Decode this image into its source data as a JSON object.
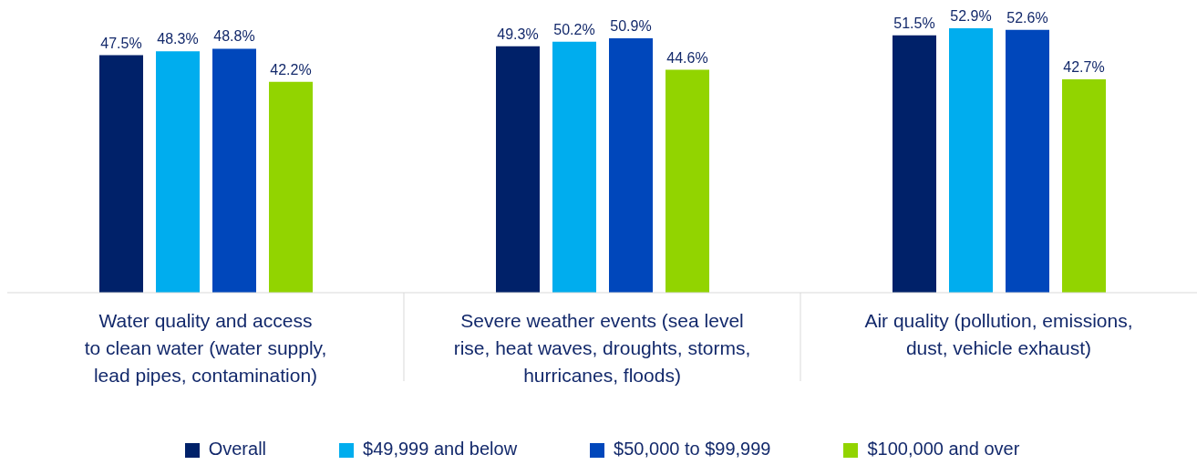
{
  "chart_data": {
    "type": "bar",
    "categories": [
      "Water quality and access\nto clean water (water supply,\nlead pipes, contamination)",
      "Severe weather events (sea level\nrise, heat waves, droughts, storms,\nhurricanes, floods)",
      "Air quality (pollution, emissions,\ndust, vehicle exhaust)"
    ],
    "series": [
      {
        "name": "Overall",
        "color": "#002169",
        "values": [
          47.5,
          49.3,
          51.5
        ],
        "value_labels": [
          "47.5%",
          "49.3%",
          "51.5%"
        ]
      },
      {
        "name": "$49,999 and below",
        "color": "#00adee",
        "values": [
          48.3,
          50.2,
          52.9
        ],
        "value_labels": [
          "48.3%",
          "50.2%",
          "52.9%"
        ]
      },
      {
        "name": "$50,000 to $99,999",
        "color": "#0047bb",
        "values": [
          48.8,
          50.9,
          52.6
        ],
        "value_labels": [
          "48.8%",
          "50.9%",
          "52.6%"
        ]
      },
      {
        "name": "$100,000 and over",
        "color": "#92d400",
        "values": [
          42.2,
          44.6,
          42.7
        ],
        "value_labels": [
          "42.2%",
          "44.6%",
          "42.7%"
        ]
      }
    ],
    "legend": "bottom"
  }
}
